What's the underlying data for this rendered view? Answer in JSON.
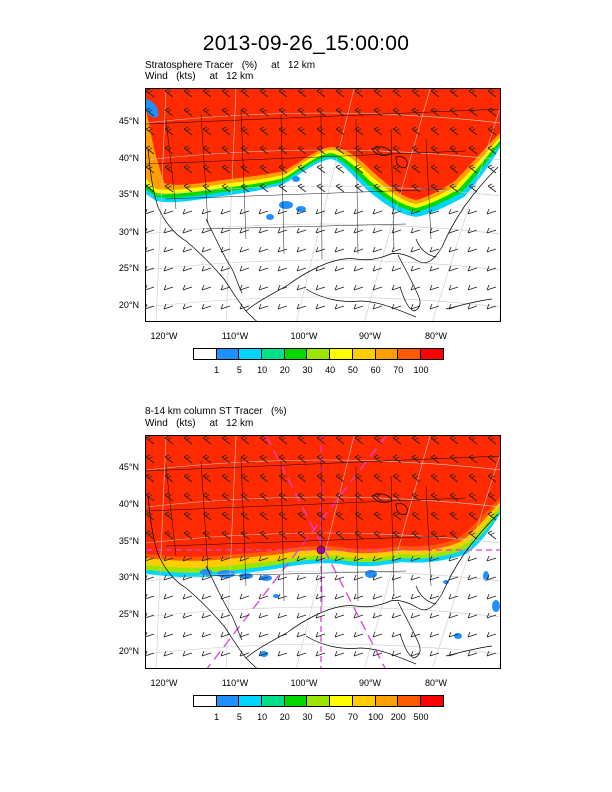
{
  "title": "2013-09-26_15:00:00",
  "panels": [
    {
      "subtitle_line1": "Stratosphere Tracer   (%)     at   12 km",
      "subtitle_line2": "Wind   (kts)     at   12 km",
      "lat_labels": [
        "45°N",
        "40°N",
        "35°N",
        "30°N",
        "25°N",
        "20°N"
      ],
      "lon_labels": [
        "120°W",
        "110°W",
        "100°W",
        "90°W",
        "80°W"
      ],
      "colorbar_levels": [
        "1",
        "5",
        "10",
        "20",
        "30",
        "40",
        "50",
        "60",
        "70",
        "100"
      ]
    },
    {
      "subtitle_line1": "8-14 km column ST Tracer   (%)",
      "subtitle_line2": "Wind   (kts)     at   12 km",
      "lat_labels": [
        "45°N",
        "40°N",
        "35°N",
        "30°N",
        "25°N",
        "20°N"
      ],
      "lon_labels": [
        "120°W",
        "110°W",
        "100°W",
        "90°W",
        "80°W"
      ],
      "colorbar_levels": [
        "1",
        "5",
        "10",
        "20",
        "30",
        "50",
        "70",
        "100",
        "200",
        "500"
      ]
    }
  ],
  "colorbar_colors": [
    "#ffffff",
    "#1e90ff",
    "#00d5ff",
    "#00e08a",
    "#00d900",
    "#9be600",
    "#ffff00",
    "#ffcc00",
    "#ff9f00",
    "#ff5a00",
    "#ff0000"
  ],
  "fill_color": "#ff2a00"
}
